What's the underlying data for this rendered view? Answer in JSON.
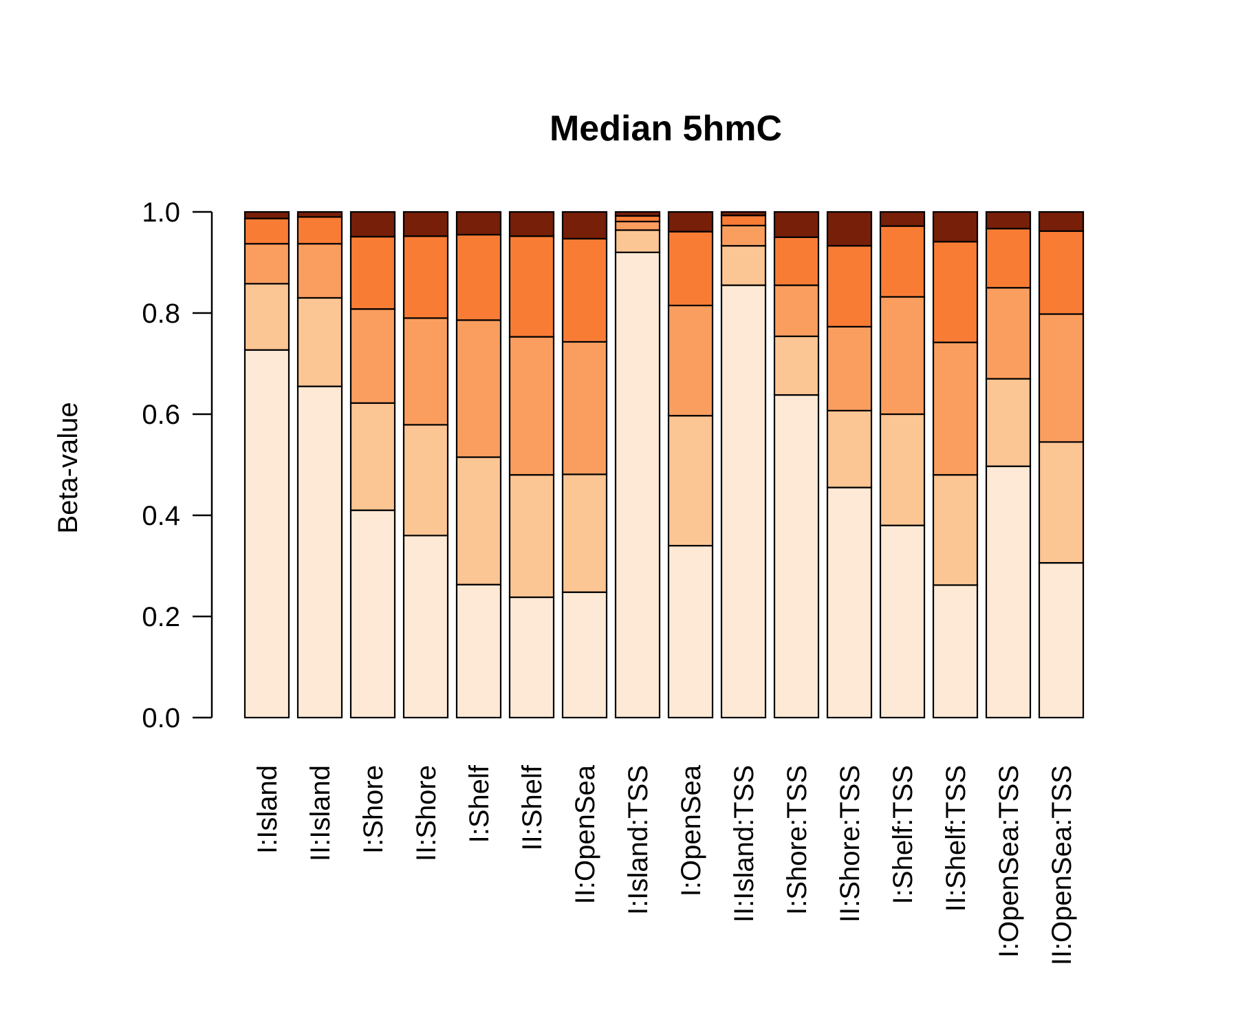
{
  "chart_data": {
    "type": "bar",
    "stacked": true,
    "title": "Median 5hmC",
    "xlabel": "",
    "ylabel": "Beta-value",
    "ylim": [
      0,
      1
    ],
    "yticks": [
      "0.0",
      "0.2",
      "0.4",
      "0.6",
      "0.8",
      "1.0"
    ],
    "categories": [
      "I:Island",
      "II:Island",
      "I:Shore",
      "II:Shore",
      "I:Shelf",
      "II:Shelf",
      "II:OpenSea",
      "I:Island:TSS",
      "I:OpenSea",
      "II:Island:TSS",
      "I:Shore:TSS",
      "II:Shore:TSS",
      "I:Shelf:TSS",
      "II:Shelf:TSS",
      "I:OpenSea:TSS",
      "II:OpenSea:TSS"
    ],
    "cumulative_boundaries": [
      [
        0.727,
        0.858,
        0.937,
        0.987,
        1.0
      ],
      [
        0.655,
        0.83,
        0.937,
        0.99,
        1.0
      ],
      [
        0.41,
        0.622,
        0.808,
        0.951,
        1.0
      ],
      [
        0.36,
        0.579,
        0.79,
        0.952,
        1.0
      ],
      [
        0.263,
        0.515,
        0.786,
        0.955,
        1.0
      ],
      [
        0.238,
        0.48,
        0.753,
        0.952,
        1.0
      ],
      [
        0.248,
        0.481,
        0.743,
        0.947,
        1.0
      ],
      [
        0.92,
        0.964,
        0.981,
        0.992,
        1.0
      ],
      [
        0.34,
        0.597,
        0.815,
        0.961,
        1.0
      ],
      [
        0.855,
        0.933,
        0.973,
        0.993,
        1.0
      ],
      [
        0.638,
        0.754,
        0.855,
        0.95,
        1.0
      ],
      [
        0.455,
        0.607,
        0.773,
        0.933,
        1.0
      ],
      [
        0.38,
        0.6,
        0.832,
        0.972,
        1.0
      ],
      [
        0.262,
        0.48,
        0.742,
        0.941,
        1.0
      ],
      [
        0.497,
        0.67,
        0.85,
        0.967,
        1.0
      ],
      [
        0.306,
        0.545,
        0.798,
        0.962,
        1.0
      ]
    ],
    "segment_colors": [
      "#FEE9D6",
      "#FCC594",
      "#FA9E5F",
      "#F97C35",
      "#771F09"
    ],
    "grid": false,
    "legend": "none"
  }
}
